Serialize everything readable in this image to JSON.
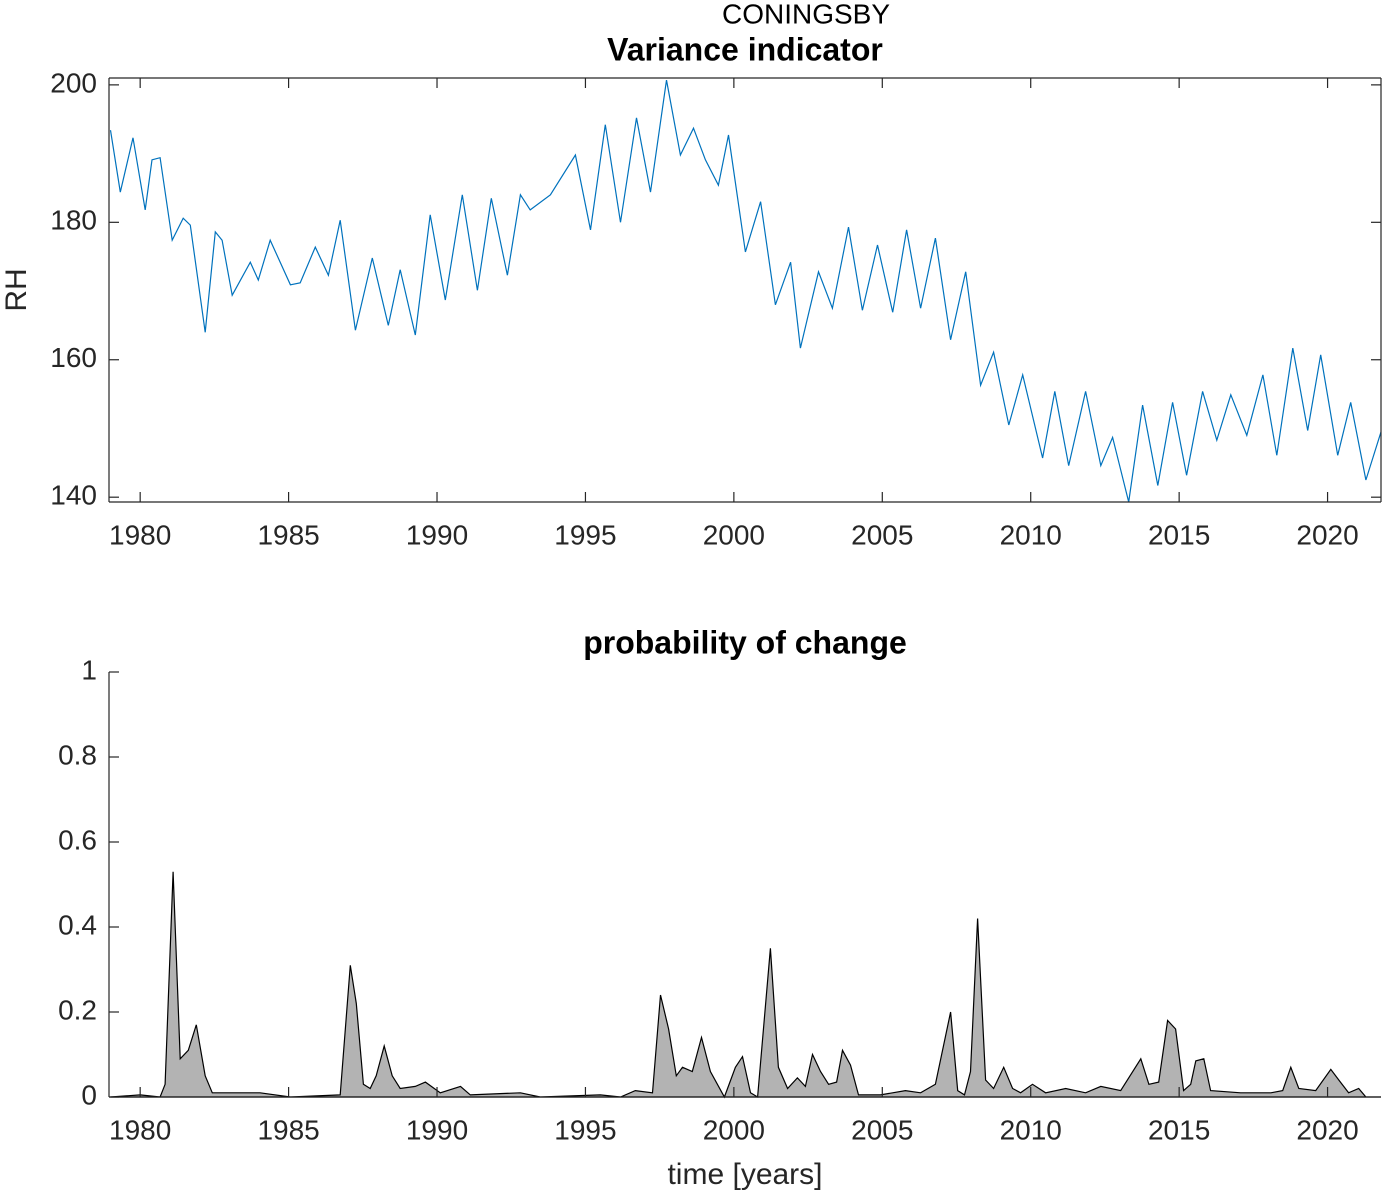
{
  "title": "CONINGSBY",
  "chart_data": [
    {
      "type": "line",
      "title": "Variance indicator",
      "ylabel": "RH",
      "color": "#0072bd",
      "x": [
        1979.0,
        1979.33,
        1979.76,
        1980.17,
        1980.4,
        1980.67,
        1981.08,
        1981.45,
        1981.69,
        1982.19,
        1982.53,
        1982.76,
        1983.1,
        1983.71,
        1983.98,
        1984.38,
        1985.06,
        1985.39,
        1985.9,
        1986.34,
        1986.74,
        1987.25,
        1987.82,
        1988.36,
        1988.76,
        1989.27,
        1989.77,
        1990.28,
        1990.85,
        1991.36,
        1991.83,
        1992.37,
        1992.81,
        1993.14,
        1993.82,
        1994.66,
        1995.17,
        1995.67,
        1996.18,
        1996.72,
        1997.19,
        1997.73,
        1998.2,
        1998.64,
        1999.04,
        1999.48,
        1999.82,
        2000.39,
        2000.9,
        2001.4,
        2001.91,
        2002.24,
        2002.85,
        2003.32,
        2003.86,
        2004.33,
        2004.84,
        2005.35,
        2005.82,
        2006.29,
        2006.79,
        2007.3,
        2007.81,
        2008.31,
        2008.75,
        2009.26,
        2009.73,
        2010.4,
        2010.81,
        2011.28,
        2011.85,
        2012.36,
        2012.76,
        2013.3,
        2013.77,
        2014.28,
        2014.78,
        2015.25,
        2015.79,
        2016.27,
        2016.74,
        2017.28,
        2017.82,
        2018.29,
        2018.83,
        2019.33,
        2019.77,
        2020.34,
        2020.78,
        2021.29,
        2021.8
      ],
      "values": [
        193.4,
        184.4,
        192.3,
        181.8,
        189.1,
        189.4,
        177.4,
        180.6,
        179.6,
        164.0,
        178.6,
        177.4,
        169.4,
        174.2,
        171.6,
        177.4,
        170.9,
        171.2,
        176.4,
        172.3,
        180.3,
        164.3,
        174.8,
        165.0,
        173.1,
        163.6,
        181.1,
        168.7,
        184.0,
        170.1,
        183.5,
        172.3,
        184.0,
        181.8,
        184.0,
        189.8,
        178.9,
        194.2,
        180.0,
        195.2,
        184.4,
        200.7,
        189.8,
        193.7,
        189.1,
        185.4,
        192.7,
        175.7,
        183.0,
        168.0,
        174.2,
        161.7,
        172.8,
        167.5,
        179.3,
        167.2,
        176.7,
        166.9,
        178.9,
        167.5,
        177.7,
        162.9,
        172.8,
        156.3,
        161.1,
        150.5,
        157.8,
        145.7,
        155.4,
        144.6,
        155.4,
        144.6,
        148.7,
        139.3,
        153.4,
        141.7,
        153.8,
        143.2,
        155.4,
        148.3,
        154.9,
        149.0,
        157.8,
        146.1,
        161.7,
        149.7,
        160.7,
        146.1,
        153.8,
        142.5,
        149.5
      ],
      "xlim": [
        1978.95,
        2021.8
      ],
      "ylim": [
        139.3,
        201
      ],
      "xticks": [
        1980,
        1985,
        1990,
        1995,
        2000,
        2005,
        2010,
        2015,
        2020
      ],
      "yticks": [
        140,
        160,
        180,
        200
      ]
    },
    {
      "type": "area",
      "title": "probability of change",
      "xlabel": "time [years]",
      "color": "#b3b3b3",
      "edge_color": "#000000",
      "x": [
        1979.0,
        1980.0,
        1980.67,
        1980.84,
        1981.11,
        1981.35,
        1981.62,
        1981.89,
        1982.19,
        1982.43,
        1984.04,
        1985.06,
        1986.74,
        1987.08,
        1987.28,
        1987.52,
        1987.75,
        1987.95,
        1988.22,
        1988.49,
        1988.76,
        1989.27,
        1989.61,
        1990.11,
        1990.79,
        1991.12,
        1992.81,
        1993.48,
        1995.5,
        1996.18,
        1996.68,
        1997.26,
        1997.53,
        1997.8,
        1998.06,
        1998.27,
        1998.6,
        1998.91,
        1999.21,
        1999.68,
        2000.05,
        2000.29,
        2000.56,
        2000.8,
        2001.23,
        2001.5,
        2001.81,
        2002.14,
        2002.41,
        2002.65,
        2002.92,
        2003.19,
        2003.46,
        2003.66,
        2003.93,
        2004.2,
        2004.94,
        2005.78,
        2006.29,
        2006.79,
        2007.3,
        2007.54,
        2007.77,
        2007.97,
        2008.21,
        2008.48,
        2008.75,
        2009.09,
        2009.39,
        2009.66,
        2010.06,
        2010.5,
        2011.18,
        2011.85,
        2012.36,
        2013.03,
        2013.71,
        2013.98,
        2014.31,
        2014.61,
        2014.88,
        2015.15,
        2015.39,
        2015.56,
        2015.83,
        2016.06,
        2017.07,
        2018.09,
        2018.49,
        2018.76,
        2019.03,
        2019.6,
        2020.11,
        2020.38,
        2020.71,
        2021.05,
        2021.29,
        2021.8
      ],
      "values": [
        0,
        0.005,
        0,
        0.03,
        0.53,
        0.09,
        0.11,
        0.17,
        0.05,
        0.01,
        0.01,
        0,
        0.005,
        0.31,
        0.22,
        0.03,
        0.02,
        0.05,
        0.12,
        0.05,
        0.02,
        0.025,
        0.035,
        0.01,
        0.025,
        0.005,
        0.01,
        0,
        0.005,
        0,
        0.015,
        0.01,
        0.24,
        0.16,
        0.05,
        0.07,
        0.06,
        0.14,
        0.06,
        0,
        0.07,
        0.095,
        0.01,
        0,
        0.35,
        0.07,
        0.02,
        0.045,
        0.025,
        0.1,
        0.06,
        0.03,
        0.035,
        0.11,
        0.075,
        0.005,
        0.005,
        0.015,
        0.01,
        0.03,
        0.2,
        0.015,
        0.005,
        0.06,
        0.42,
        0.04,
        0.02,
        0.07,
        0.02,
        0.01,
        0.03,
        0.01,
        0.02,
        0.01,
        0.025,
        0.015,
        0.09,
        0.03,
        0.035,
        0.18,
        0.16,
        0.015,
        0.03,
        0.085,
        0.09,
        0.015,
        0.01,
        0.01,
        0.015,
        0.07,
        0.02,
        0.015,
        0.065,
        0.04,
        0.01,
        0.02,
        0,
        0
      ],
      "xlim": [
        1978.95,
        2021.8
      ],
      "ylim": [
        0,
        1
      ],
      "xticks": [
        1980,
        1985,
        1990,
        1995,
        2000,
        2005,
        2010,
        2015,
        2020
      ],
      "yticks": [
        0,
        0.2,
        0.4,
        0.6,
        0.8,
        1
      ]
    }
  ]
}
